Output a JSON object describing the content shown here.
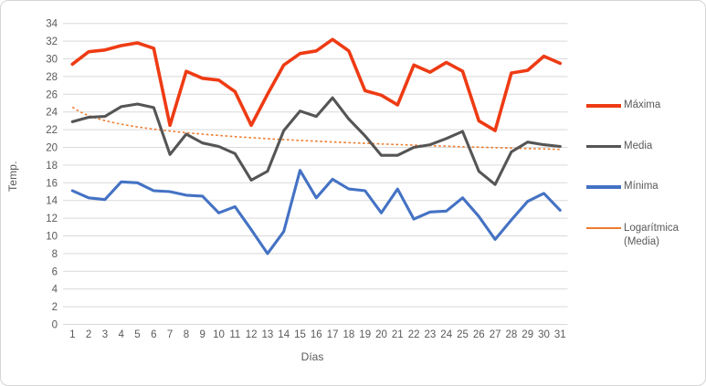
{
  "chart_data": {
    "type": "line",
    "title": "",
    "x_label": "Días",
    "y_label": "Temp.",
    "ylim": [
      0,
      34
    ],
    "y_ticks": [
      0,
      2,
      4,
      6,
      8,
      10,
      12,
      14,
      16,
      18,
      20,
      22,
      24,
      26,
      28,
      30,
      32,
      34
    ],
    "grid": true,
    "legend_position": "right",
    "x": [
      1,
      2,
      3,
      4,
      5,
      6,
      7,
      8,
      9,
      10,
      11,
      12,
      13,
      14,
      15,
      16,
      17,
      18,
      19,
      20,
      21,
      22,
      23,
      24,
      25,
      26,
      27,
      28,
      29,
      30,
      31
    ],
    "series": [
      {
        "name": "Máxima",
        "color": "#EE3B14",
        "values": [
          29.4,
          30.8,
          31.0,
          31.5,
          31.8,
          31.2,
          22.5,
          28.6,
          27.8,
          27.6,
          26.3,
          22.5,
          26.0,
          29.3,
          30.6,
          30.9,
          32.2,
          30.9,
          26.4,
          25.9,
          24.8,
          29.3,
          28.5,
          29.6,
          28.6,
          23.0,
          21.9,
          28.4,
          28.7,
          30.3,
          29.5
        ]
      },
      {
        "name": "Media",
        "color": "#555555",
        "values": [
          22.9,
          23.4,
          23.5,
          24.6,
          24.9,
          24.5,
          19.2,
          21.5,
          20.5,
          20.1,
          19.3,
          16.3,
          17.3,
          21.9,
          24.1,
          23.5,
          25.6,
          23.2,
          21.3,
          19.1,
          19.1,
          20.0,
          20.3,
          21.0,
          21.8,
          17.3,
          15.8,
          19.5,
          20.6,
          20.3,
          20.1
        ]
      },
      {
        "name": "Mínima",
        "color": "#4472C4",
        "values": [
          15.1,
          14.3,
          14.1,
          16.1,
          16.0,
          15.1,
          15.0,
          14.6,
          14.5,
          12.6,
          13.3,
          10.7,
          8.0,
          10.5,
          17.4,
          14.3,
          16.4,
          15.3,
          15.1,
          12.6,
          15.3,
          11.9,
          12.7,
          12.8,
          14.3,
          12.2,
          9.6,
          11.8,
          13.9,
          14.8,
          12.9
        ]
      }
    ],
    "trendline": {
      "name": "Logarítmica (Media)",
      "of_series": "Media",
      "color": "#ED7D31",
      "style": "dotted",
      "a": 24.55,
      "b": -1.39
    },
    "grid_color": "#D9D9D9",
    "tick_color": "#595959"
  },
  "legend": {
    "items": [
      {
        "label": "Máxima"
      },
      {
        "label": "Media"
      },
      {
        "label": "Mínima"
      },
      {
        "label": "Logarítmica (Media)"
      }
    ]
  }
}
